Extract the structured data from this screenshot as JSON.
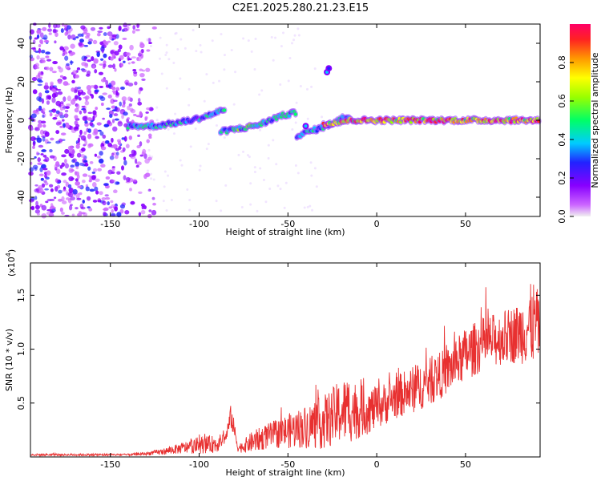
{
  "title": "C2E1.2025.280.21.23.E15",
  "chart_data": [
    {
      "type": "heatmap",
      "name": "rti-spectrogram",
      "xlabel": "Height of straight line (km)",
      "ylabel": "Frequency (Hz)",
      "xlim": [
        -195,
        92
      ],
      "ylim": [
        -50,
        50
      ],
      "xticks": [
        -150,
        -100,
        -50,
        0,
        50
      ],
      "xtick_labels": [
        "-150",
        "-100",
        "-50",
        "0",
        "50"
      ],
      "yticks": [
        -40,
        -20,
        0,
        20,
        40
      ],
      "ytick_labels": [
        "-40",
        "-20",
        "0",
        "20",
        "40"
      ],
      "colorbar": {
        "label": "Normalized spectral amplitude",
        "range": [
          0,
          1
        ],
        "ticks": [
          0.0,
          0.2,
          0.4,
          0.6,
          0.8
        ],
        "tick_labels": [
          "0.0",
          "0.2",
          "0.4",
          "0.6",
          "0.8"
        ],
        "colors": [
          "#f0f0f0",
          "#cc66ff",
          "#8800ff",
          "#2222ff",
          "#00ccff",
          "#00ff66",
          "#99ff00",
          "#ffff00",
          "#ff9900",
          "#ff2222",
          "#ff0066"
        ]
      },
      "ridges": [
        {
          "name": "upper-ridge",
          "points": [
            [
              -140,
              -3
            ],
            [
              -125,
              -3
            ],
            [
              -110,
              -1
            ],
            [
              -100,
              1
            ],
            [
              -90,
              4
            ],
            [
              -85,
              6
            ]
          ],
          "peak": 0.45
        },
        {
          "name": "middle-ridge",
          "points": [
            [
              -88,
              -6
            ],
            [
              -75,
              -4
            ],
            [
              -65,
              -2
            ],
            [
              -55,
              2
            ],
            [
              -45,
              4
            ]
          ],
          "peak": 0.5
        },
        {
          "name": "lower-ridge",
          "points": [
            [
              -45,
              -8
            ],
            [
              -35,
              -5
            ],
            [
              -28,
              -3
            ],
            [
              -20,
              1
            ],
            [
              -15,
              2
            ]
          ],
          "peak": 0.45
        },
        {
          "name": "main-ridge",
          "points": [
            [
              -30,
              -2
            ],
            [
              -15,
              0
            ],
            [
              0,
              0
            ],
            [
              20,
              0
            ],
            [
              50,
              0
            ],
            [
              92,
              0
            ]
          ],
          "peak": 0.95
        }
      ],
      "blobs": [
        {
          "x": -28,
          "f": 25,
          "amp": 0.35
        },
        {
          "x": -27,
          "f": 27,
          "amp": 0.3
        },
        {
          "x": -40,
          "f": -3,
          "amp": 0.4
        }
      ]
    },
    {
      "type": "line",
      "name": "snr-plot",
      "series_name": "SNR",
      "color": "#e83030",
      "xlabel": "Height of straight line (km)",
      "ylabel": "SNR (10 * v/v)",
      "yscale_label": "(x10",
      "yscale_exp": "4",
      "xlim": [
        -195,
        92
      ],
      "ylim": [
        0,
        1.8
      ],
      "xticks": [
        -150,
        -100,
        -50,
        0,
        50
      ],
      "xtick_labels": [
        "-150",
        "-100",
        "-50",
        "0",
        "50"
      ],
      "yticks": [
        0.5,
        1.0,
        1.5
      ],
      "ytick_labels": [
        "0.5",
        "1.0",
        "1.5"
      ],
      "x": [
        -195,
        -180,
        -160,
        -140,
        -130,
        -120,
        -110,
        -100,
        -90,
        -85,
        -82,
        -78,
        -75,
        -70,
        -60,
        -50,
        -40,
        -30,
        -20,
        -15,
        -10,
        0,
        10,
        20,
        30,
        40,
        50,
        60,
        70,
        80,
        85,
        88,
        92
      ],
      "envelope_mean": [
        0.02,
        0.02,
        0.02,
        0.02,
        0.03,
        0.05,
        0.08,
        0.11,
        0.12,
        0.18,
        0.38,
        0.08,
        0.1,
        0.14,
        0.2,
        0.24,
        0.28,
        0.32,
        0.42,
        0.45,
        0.42,
        0.45,
        0.55,
        0.62,
        0.7,
        0.8,
        0.95,
        1.05,
        1.1,
        1.15,
        1.2,
        1.25,
        1.2
      ],
      "envelope_spread": [
        0.01,
        0.01,
        0.01,
        0.01,
        0.015,
        0.03,
        0.05,
        0.08,
        0.08,
        0.05,
        0.12,
        0.04,
        0.06,
        0.1,
        0.12,
        0.16,
        0.2,
        0.25,
        0.3,
        0.32,
        0.25,
        0.2,
        0.2,
        0.22,
        0.22,
        0.22,
        0.25,
        0.25,
        0.25,
        0.28,
        0.35,
        0.4,
        0.3
      ]
    }
  ]
}
